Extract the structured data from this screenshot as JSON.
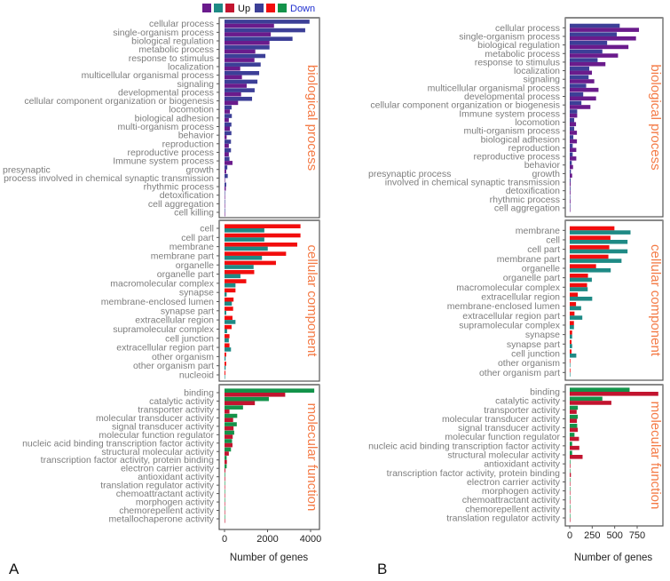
{
  "legend": {
    "up_label": "Up",
    "down_label": "Down",
    "up_colors": [
      "#6a1b8c",
      "#1e8a85",
      "#c2142f"
    ],
    "down_colors": [
      "#3c3f97",
      "#f20d0d",
      "#13934a"
    ]
  },
  "chart_data": [
    {
      "panel_label": "A",
      "type": "bar",
      "orientation": "horizontal",
      "xlabel": "Number of genes",
      "xlim": [
        0,
        4300
      ],
      "xticks": [
        0,
        2000,
        4000
      ],
      "facets": [
        {
          "name": "biological process",
          "down_color": "#3c3f97",
          "up_color": "#6a1b8c",
          "categories": [
            "cellular process",
            "single-organism process",
            "biological regulation",
            "metabolic process",
            "response to stimulus",
            "localization",
            "multicellular organismal process",
            "signaling",
            "developmental process",
            "cellular component organization or biogenesis",
            "locomotion",
            "biological adhesion",
            "multi-organism process",
            "behavior",
            "reproduction",
            "reproductive process",
            "Immune system process",
            "growth",
            [
              "presynaptic",
              "process involved in chemical synaptic transmission"
            ],
            "rhythmic process",
            "detoxification",
            "cell aggregation",
            "cell killing"
          ],
          "down": [
            3950,
            3750,
            3160,
            2090,
            1900,
            1680,
            1610,
            1530,
            1400,
            1280,
            330,
            340,
            320,
            320,
            300,
            300,
            230,
            130,
            150,
            80,
            20,
            15,
            10
          ],
          "up": [
            2300,
            2150,
            2090,
            1430,
            1390,
            730,
            810,
            1030,
            770,
            630,
            250,
            200,
            250,
            100,
            200,
            200,
            370,
            80,
            10,
            60,
            20,
            10,
            10
          ]
        },
        {
          "name": "cellular component",
          "down_color": "#f20d0d",
          "up_color": "#1e8a85",
          "categories": [
            "cell",
            "cell part",
            "membrane",
            "membrane part",
            "organelle",
            "organelle part",
            "macromolecular complex",
            "synapse",
            "membrane-enclosed lumen",
            "synapse part",
            "extracellular region",
            "supramolecular complex",
            "cell junction",
            "extracellular region part",
            "other organism",
            "other organism part",
            "nucleoid"
          ],
          "down": [
            3530,
            3530,
            3380,
            2860,
            2390,
            1380,
            1010,
            510,
            420,
            400,
            370,
            330,
            230,
            230,
            80,
            80,
            40
          ],
          "up": [
            1850,
            1850,
            2010,
            1740,
            1350,
            740,
            510,
            100,
            340,
            80,
            510,
            120,
            200,
            300,
            50,
            50,
            10
          ]
        },
        {
          "name": "molecular function",
          "down_color": "#13934a",
          "up_color": "#c2142f",
          "categories": [
            "binding",
            "catalytic activity",
            "transporter activity",
            "molecular transducer activity",
            "signal transducer activity",
            "molecular function regulator",
            "nucleic acid binding transcription factor activity",
            "structural molecular activity",
            "transcription factor activity, protein binding",
            "electron carrier activity",
            "antioxidant activity",
            "translation regulator activity",
            "chemoattractant activity",
            "morphogen activity",
            "chemorepellent activity",
            "metallochaperone activity"
          ],
          "down": [
            4170,
            2060,
            860,
            590,
            570,
            450,
            350,
            300,
            100,
            100,
            30,
            20,
            15,
            15,
            10,
            5
          ],
          "up": [
            2820,
            1410,
            230,
            400,
            420,
            380,
            370,
            200,
            110,
            40,
            30,
            20,
            15,
            10,
            10,
            5
          ]
        }
      ]
    },
    {
      "panel_label": "B",
      "type": "bar",
      "orientation": "horizontal",
      "xlabel": "Number of genes",
      "xlim": [
        0,
        1050
      ],
      "xticks": [
        0,
        250,
        500,
        750
      ],
      "facets": [
        {
          "name": "biological process",
          "down_color": "#3c3f97",
          "up_color": "#6a1b8c",
          "categories": [
            "cellular process",
            "single-organism process",
            "biological regulation",
            "metabolic process",
            "response to stimulus",
            "localization",
            "signaling",
            "multicellular organismal process",
            "developmental process",
            "cellular component organization or biogenesis",
            "Immune system process",
            "locomotion",
            "multi-organism process",
            "biological adhesion",
            "reproduction",
            "reproductive process",
            "behavior",
            "growth",
            [
              "presynaptic process",
              "involved in chemical synaptic transmission"
            ],
            "detoxification",
            "rhythmic process",
            "cell aggregation"
          ],
          "down": [
            556,
            523,
            416,
            363,
            310,
            217,
            210,
            183,
            150,
            130,
            83,
            50,
            50,
            40,
            33,
            33,
            23,
            13,
            10,
            8,
            5,
            3
          ],
          "up": [
            770,
            737,
            653,
            537,
            397,
            247,
            273,
            320,
            293,
            230,
            83,
            70,
            80,
            80,
            73,
            73,
            37,
            27,
            10,
            8,
            8,
            3
          ]
        },
        {
          "name": "cellular component",
          "down_color": "#f20d0d",
          "up_color": "#1e8a85",
          "categories": [
            "membrane",
            "cell",
            "cell part",
            "membrane part",
            "organelle",
            "organelle part",
            "macromolecular complex",
            "extracellular region",
            "membrane-enclosed lumen",
            "extracellular region part",
            "supramolecular complex",
            "synapse",
            "synapse part",
            "cell junction",
            "other organism",
            "other organism part"
          ],
          "down": [
            497,
            453,
            440,
            430,
            293,
            203,
            193,
            90,
            70,
            53,
            47,
            27,
            20,
            20,
            7,
            7
          ],
          "up": [
            676,
            643,
            643,
            576,
            456,
            246,
            200,
            250,
            127,
            140,
            47,
            27,
            27,
            73,
            3,
            3
          ]
        },
        {
          "name": "molecular function",
          "down_color": "#13934a",
          "up_color": "#c2142f",
          "categories": [
            "binding",
            "catalytic activity",
            "transporter activity",
            "molecular transducer activity",
            "signal transducer activity",
            "molecular function regulator",
            "nucleic acid binding transcription factor activity",
            "structural molecular activity",
            "antioxidant activity",
            "transcription factor activity, protein binding",
            "electron carrier activity",
            "morphogen activity",
            "chemoattractant activity",
            "chemorepellent activity",
            "translation regulator activity"
          ],
          "down": [
            666,
            363,
            90,
            90,
            83,
            53,
            27,
            27,
            7,
            3,
            3,
            3,
            2,
            2,
            2
          ],
          "up": [
            985,
            463,
            77,
            80,
            90,
            103,
            107,
            143,
            7,
            13,
            3,
            3,
            2,
            2,
            2
          ]
        }
      ]
    }
  ]
}
